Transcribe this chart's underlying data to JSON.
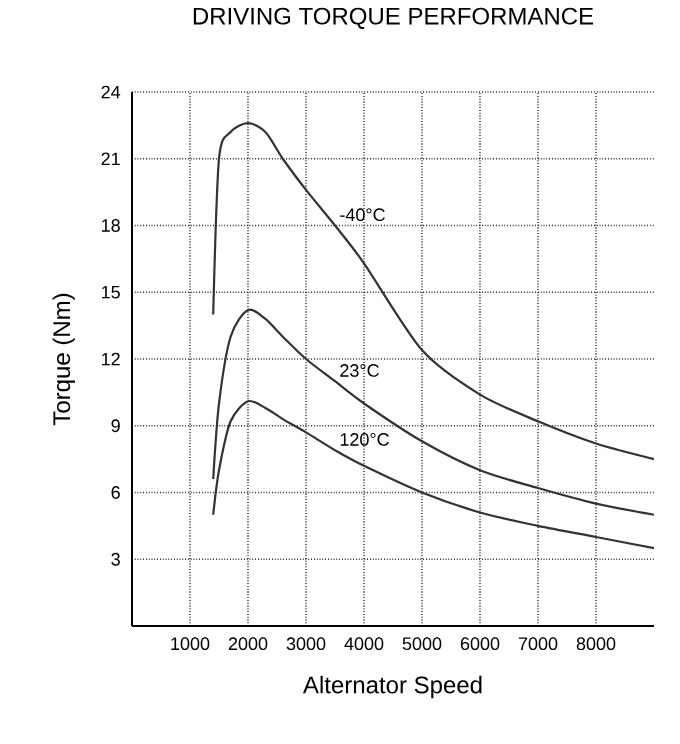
{
  "chart_data": {
    "type": "line",
    "title": "DRIVING TORQUE PERFORMANCE",
    "xlabel": "Alternator Speed",
    "ylabel": "Torque (Nm)",
    "xlim": [
      0,
      9000
    ],
    "xticks": [
      1000,
      2000,
      3000,
      4000,
      5000,
      6000,
      7000,
      8000
    ],
    "ylim": [
      0,
      24
    ],
    "yticks": [
      3,
      6,
      9,
      12,
      15,
      18,
      21,
      24
    ],
    "grid": true,
    "marker": "none",
    "line_style": "solid",
    "x": [
      1400,
      1500,
      1700,
      2000,
      2300,
      2600,
      3000,
      3500,
      4000,
      5000,
      6000,
      7000,
      8000,
      9000
    ],
    "series": [
      {
        "name": "-40°C",
        "color": "#333333",
        "values": [
          14,
          21,
          22.2,
          22.6,
          22.2,
          21,
          19.6,
          18,
          16.3,
          12.4,
          10.4,
          9.2,
          8.2,
          7.5
        ]
      },
      {
        "name": "23°C",
        "color": "#333333",
        "values": [
          6.6,
          10,
          13,
          14.2,
          13.8,
          13,
          12,
          11,
          10,
          8.3,
          7,
          6.2,
          5.5,
          5
        ]
      },
      {
        "name": "120°C",
        "color": "#333333",
        "values": [
          5,
          7,
          9.2,
          10.1,
          9.8,
          9.3,
          8.7,
          7.9,
          7.2,
          6,
          5.1,
          4.5,
          4,
          3.5
        ]
      }
    ]
  }
}
